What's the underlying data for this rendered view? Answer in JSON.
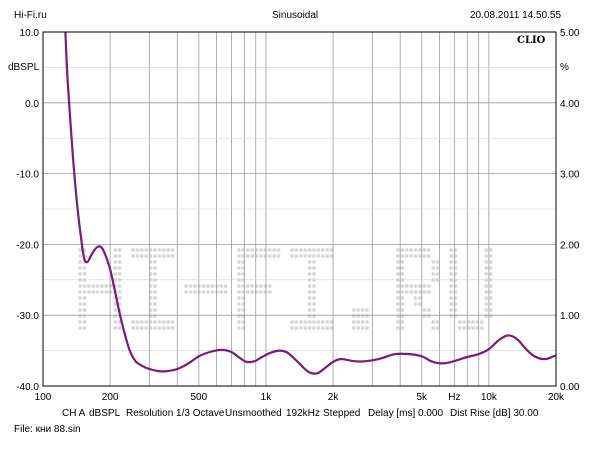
{
  "header": {
    "left": "Hi-Fi.ru",
    "center": "Sinusoidal",
    "right": "20.08.2011 14.50.55"
  },
  "chart_data": {
    "type": "line",
    "xscale": "log",
    "xlim": [
      100,
      20000
    ],
    "ylim": [
      -40,
      10
    ],
    "y2lim": [
      0,
      5
    ],
    "ylabel": "dBSPL",
    "y2label": "%",
    "xticks": [
      {
        "v": 100,
        "label": "100"
      },
      {
        "v": 200,
        "label": "200"
      },
      {
        "v": 500,
        "label": "500"
      },
      {
        "v": 1000,
        "label": "1k"
      },
      {
        "v": 2000,
        "label": "2k"
      },
      {
        "v": 5000,
        "label": "5k"
      },
      {
        "v": 7000,
        "label": "Hz"
      },
      {
        "v": 10000,
        "label": "10k"
      },
      {
        "v": 20000,
        "label": "20k"
      }
    ],
    "yticks": [
      "10.0",
      "0.0",
      "-10.0",
      "-20.0",
      "-30.0",
      "-40.0"
    ],
    "y2ticks": [
      "5.00",
      "4.00",
      "3.00",
      "2.00",
      "1.00",
      "0.00"
    ],
    "grid": true,
    "series": [
      {
        "color": "#7a1a7a",
        "x": [
          126,
          128,
          131,
          135,
          139,
          143,
          148,
          153,
          158,
          163,
          170,
          177,
          184,
          192,
          200,
          210,
          220,
          232,
          245,
          260,
          280,
          300,
          330,
          360,
          400,
          450,
          500,
          560,
          630,
          700,
          760,
          820,
          890,
          960,
          1050,
          1150,
          1250,
          1400,
          1550,
          1700,
          1850,
          2000,
          2150,
          2300,
          2500,
          2800,
          3200,
          3800,
          4400,
          5000,
          5500,
          6000,
          6600,
          7300,
          8000,
          9000,
          10000,
          11000,
          12000,
          12800,
          13600,
          14500,
          15500,
          16500,
          17500,
          18500,
          19500,
          20000
        ],
        "y": [
          10,
          5,
          0,
          -6,
          -11,
          -15,
          -19,
          -22,
          -22.5,
          -21.8,
          -20.8,
          -20.3,
          -20.5,
          -21.8,
          -23.5,
          -26.5,
          -29.5,
          -32.5,
          -35,
          -36.5,
          -37.2,
          -37.6,
          -37.9,
          -37.9,
          -37.6,
          -36.8,
          -35.8,
          -35.2,
          -34.9,
          -35.2,
          -36,
          -36.6,
          -36.5,
          -35.9,
          -35.3,
          -35,
          -35.3,
          -36.7,
          -38,
          -38.2,
          -37.4,
          -36.6,
          -36.2,
          -36.3,
          -36.5,
          -36.5,
          -36.2,
          -35.5,
          -35.5,
          -35.8,
          -36.5,
          -36.8,
          -36.7,
          -36.3,
          -35.9,
          -35.5,
          -34.8,
          -33.6,
          -32.9,
          -33,
          -33.6,
          -34.6,
          -35.5,
          -36,
          -36.2,
          -36.1,
          -35.8,
          -35.7
        ]
      }
    ]
  },
  "watermark": "HI-FI.RU",
  "logo": "CLIO",
  "footer": {
    "line1": [
      "CH A",
      "dBSPL",
      "Resolution 1/3 Octave",
      "Unsmoothed",
      "192kHz",
      "Stepped",
      "Delay [ms] 0.000",
      "Dist Rise [dB] 30.00"
    ],
    "line2": "File: кни 88.sin"
  }
}
